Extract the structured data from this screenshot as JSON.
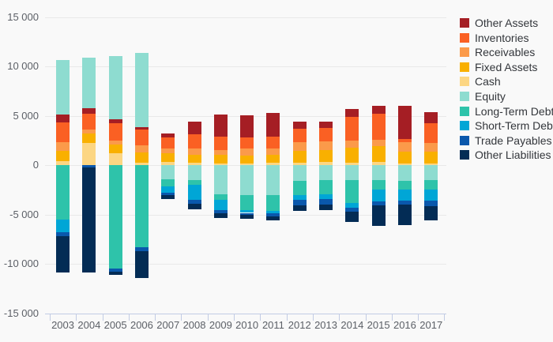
{
  "chart_data": {
    "type": "bar",
    "stacked": true,
    "title": "",
    "xlabel": "",
    "ylabel": "",
    "legend_position": "top-right",
    "grid": true,
    "ylim": [
      -15000,
      15000
    ],
    "categories": [
      "2003",
      "2004",
      "2005",
      "2006",
      "2007",
      "2008",
      "2009",
      "2010",
      "2011",
      "2012",
      "2013",
      "2014",
      "2015",
      "2016",
      "2017"
    ],
    "y_ticks": [
      {
        "value": 15000,
        "label": "15 000"
      },
      {
        "value": 10000,
        "label": "10 000"
      },
      {
        "value": 5000,
        "label": "5 000"
      },
      {
        "value": 0,
        "label": "0"
      },
      {
        "value": -5000,
        "label": "-5 000"
      },
      {
        "value": -10000,
        "label": "-10 000"
      },
      {
        "value": -15000,
        "label": "-15 000"
      }
    ],
    "series": [
      {
        "name": "Other Assets",
        "color": "#a51e24",
        "values": [
          800,
          540,
          400,
          220,
          370,
          1310,
          2230,
          2240,
          2390,
          700,
          690,
          800,
          790,
          3370,
          1080
        ]
      },
      {
        "name": "Inventories",
        "color": "#fa6023",
        "values": [
          1950,
          1550,
          1730,
          1570,
          1170,
          1410,
          1380,
          1170,
          1200,
          1340,
          1370,
          2420,
          2680,
          340,
          1970
        ]
      },
      {
        "name": "Receivables",
        "color": "#fb9a4a",
        "values": [
          880,
          400,
          400,
          750,
          480,
          640,
          450,
          660,
          640,
          840,
          870,
          740,
          610,
          920,
          870
        ]
      },
      {
        "name": "Fixed Assets",
        "color": "#f9b000",
        "values": [
          1100,
          990,
          880,
          1060,
          850,
          820,
          880,
          800,
          820,
          1210,
          1180,
          1470,
          1580,
          1240,
          1240
        ]
      },
      {
        "name": "Cash",
        "color": "#fcd683",
        "values": [
          400,
          2260,
          1260,
          240,
          350,
          270,
          210,
          210,
          270,
          290,
          340,
          290,
          370,
          180,
          180
        ]
      },
      {
        "name": "Equity",
        "color": "#8edcd0",
        "values": [
          5550,
          5120,
          6370,
          7540,
          -1390,
          -1470,
          -2940,
          -2990,
          -3040,
          -1550,
          -1470,
          -1470,
          -1530,
          -1550,
          -1470
        ]
      },
      {
        "name": "Long-Term Debt",
        "color": "#2ec3aa",
        "values": [
          -5460,
          0,
          -10420,
          -8290,
          -720,
          -530,
          -530,
          -1550,
          -1600,
          -1500,
          -1500,
          -2350,
          -920,
          -890,
          -970
        ]
      },
      {
        "name": "Short-Term Debt",
        "color": "#00a6d6",
        "values": [
          -1280,
          0,
          0,
          0,
          -640,
          -1470,
          -1070,
          -270,
          -220,
          -450,
          -450,
          -450,
          -1210,
          -1110,
          -1160
        ]
      },
      {
        "name": "Trade Payables",
        "color": "#0a58ac",
        "values": [
          -430,
          -250,
          -330,
          -380,
          -290,
          -400,
          -320,
          -210,
          -270,
          -530,
          -530,
          -390,
          -420,
          -420,
          -500
        ]
      },
      {
        "name": "Other Liabilities",
        "color": "#032c55",
        "values": [
          -3660,
          -10630,
          -320,
          -2750,
          -350,
          -620,
          -480,
          -380,
          -400,
          -600,
          -600,
          -1080,
          -2050,
          -2110,
          -1450
        ]
      }
    ],
    "stack_up": [
      "Cash",
      "Fixed Assets",
      "Receivables",
      "Inventories",
      "Other Assets",
      "Equity"
    ],
    "stack_down": [
      "Equity",
      "Long-Term Debt",
      "Short-Term Debt",
      "Trade Payables",
      "Other Liabilities"
    ]
  },
  "colors": {
    "background": "#f9f9f9",
    "gridline": "#e9e9e9",
    "axis": "#c2cce4",
    "axis_text": "#5b5f66",
    "legend_text": "#33363b"
  }
}
